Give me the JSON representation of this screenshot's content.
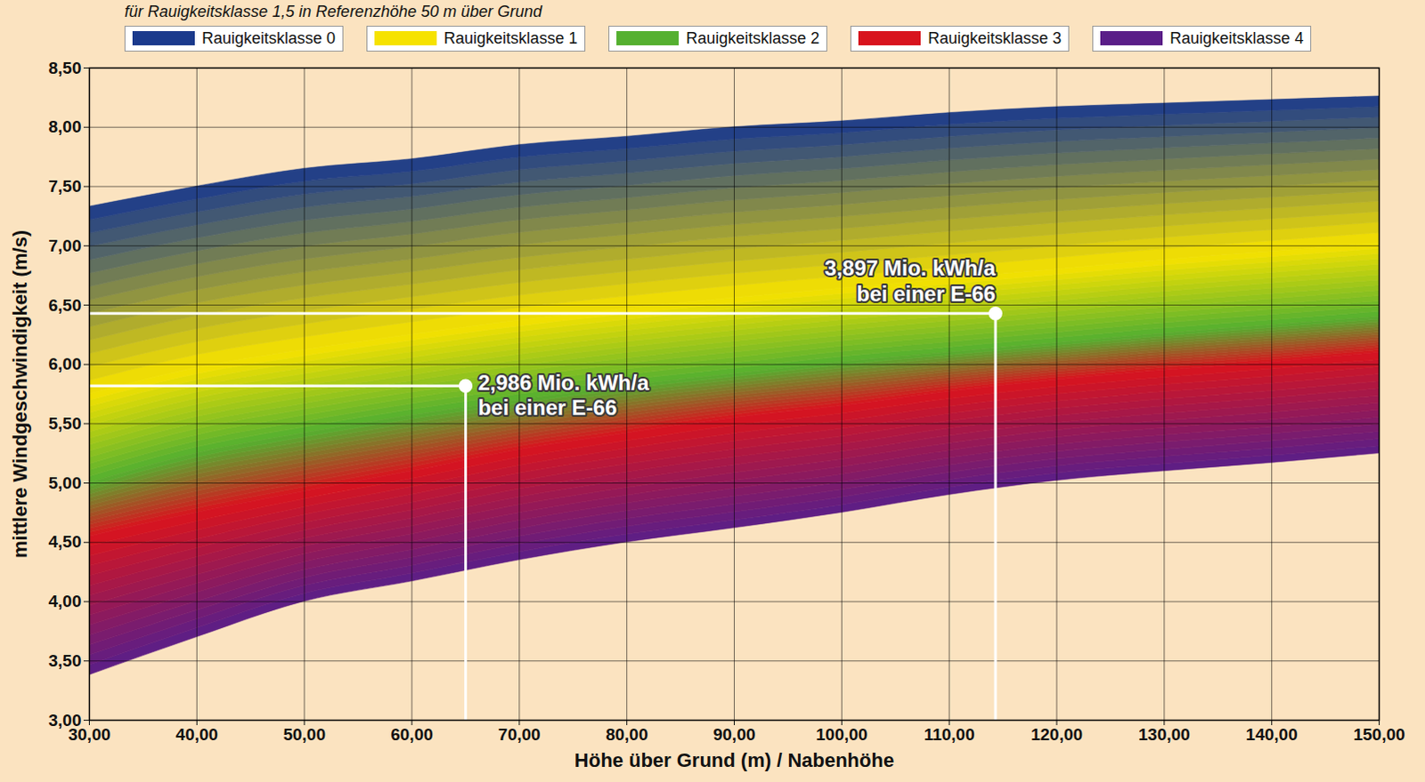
{
  "chart_data": {
    "type": "area",
    "subtitle": "für Rauigkeitsklasse 1,5 in Referenzhöhe 50 m über Grund",
    "x_label": "Höhe über Grund (m) / Nabenhöhe",
    "y_label": "mittlere Windgeschwindigkeit (m/s)",
    "x": [
      30,
      40,
      50,
      60,
      70,
      80,
      90,
      100,
      110,
      120,
      130,
      140,
      150
    ],
    "series": [
      {
        "name": "Rauigkeitsklasse 0",
        "color": "#1b3a8c",
        "values": [
          7.33,
          7.5,
          7.65,
          7.73,
          7.85,
          7.92,
          8.0,
          8.05,
          8.12,
          8.17,
          8.2,
          8.23,
          8.26
        ]
      },
      {
        "name": "Rauigkeitsklasse 1",
        "color": "#f6e200",
        "values": [
          5.75,
          5.97,
          6.12,
          6.25,
          6.37,
          6.47,
          6.56,
          6.64,
          6.72,
          6.8,
          6.88,
          6.95,
          7.02
        ]
      },
      {
        "name": "Rauigkeitsklasse 2",
        "color": "#55b030",
        "values": [
          5.0,
          5.25,
          5.42,
          5.57,
          5.7,
          5.82,
          5.92,
          6.02,
          6.1,
          6.18,
          6.26,
          6.33,
          6.4
        ]
      },
      {
        "name": "Rauigkeitsklasse 3",
        "color": "#d8141e",
        "values": [
          4.55,
          4.75,
          4.93,
          5.1,
          5.28,
          5.42,
          5.55,
          5.65,
          5.77,
          5.87,
          5.95,
          6.02,
          6.1
        ]
      },
      {
        "name": "Rauigkeitsklasse 4",
        "color": "#5a1e88",
        "values": [
          3.38,
          3.7,
          4.0,
          4.17,
          4.35,
          4.5,
          4.62,
          4.75,
          4.9,
          5.02,
          5.1,
          5.17,
          5.25
        ]
      }
    ],
    "annotations": [
      {
        "x": 65,
        "y": 5.82,
        "label": [
          "2,986 Mio. kWh/a",
          "bei einer E-66"
        ]
      },
      {
        "x": 114.3,
        "y": 6.43,
        "label": [
          "3,897 Mio. kWh/a",
          "bei einer E-66"
        ]
      }
    ],
    "xlim": [
      30,
      150
    ],
    "xticks": [
      {
        "value": 30,
        "label": "30,00"
      },
      {
        "value": 40,
        "label": "40,00"
      },
      {
        "value": 50,
        "label": "50,00"
      },
      {
        "value": 60,
        "label": "60,00"
      },
      {
        "value": 70,
        "label": "70,00"
      },
      {
        "value": 80,
        "label": "80,00"
      },
      {
        "value": 90,
        "label": "90,00"
      },
      {
        "value": 100,
        "label": "100,00"
      },
      {
        "value": 110,
        "label": "110,00"
      },
      {
        "value": 120,
        "label": "120,00"
      },
      {
        "value": 130,
        "label": "130,00"
      },
      {
        "value": 140,
        "label": "140,00"
      },
      {
        "value": 150,
        "label": "150,00"
      }
    ],
    "ylim": [
      3,
      8.5
    ],
    "yticks": [
      {
        "value": 3,
        "label": "3,00"
      },
      {
        "value": 3.5,
        "label": "3,50"
      },
      {
        "value": 4,
        "label": "4,00"
      },
      {
        "value": 4.5,
        "label": "4,50"
      },
      {
        "value": 5,
        "label": "5,00"
      },
      {
        "value": 5.5,
        "label": "5,50"
      },
      {
        "value": 6,
        "label": "6,00"
      },
      {
        "value": 6.5,
        "label": "6,50"
      },
      {
        "value": 7,
        "label": "7,00"
      },
      {
        "value": 7.5,
        "label": "7,50"
      },
      {
        "value": 8,
        "label": "8,00"
      },
      {
        "value": 8.5,
        "label": "8,50"
      }
    ],
    "grid": true,
    "legend": "top"
  }
}
